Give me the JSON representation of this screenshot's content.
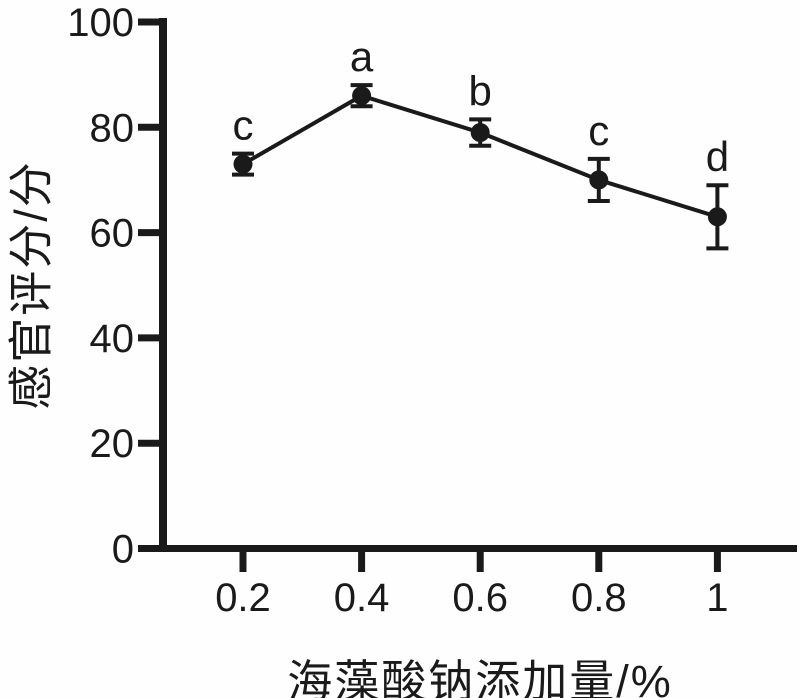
{
  "figure": {
    "background": "#fefefe",
    "ink_color": "#1a1a1a"
  },
  "chart_data": {
    "type": "line",
    "title": "",
    "xlabel": "海藻酸钠添加量/%",
    "ylabel": "感官评分/分",
    "x": [
      0.2,
      0.4,
      0.6,
      0.8,
      1
    ],
    "xtick_labels": [
      "0.2",
      "0.4",
      "0.6",
      "0.8",
      "1"
    ],
    "values": [
      73,
      86,
      79,
      70,
      63
    ],
    "errors": [
      2,
      2,
      2.5,
      4,
      6
    ],
    "point_labels": [
      "c",
      "a",
      "b",
      "c",
      "d"
    ],
    "yticks": [
      0,
      20,
      40,
      60,
      80,
      100
    ],
    "ytick_labels": [
      "0",
      "20",
      "40",
      "60",
      "80",
      "100"
    ],
    "ylim": [
      0,
      100
    ],
    "grid": false,
    "legend_position": "none",
    "marker": "filled-circle",
    "line_color": "#1a1a1a",
    "error_bars": true
  }
}
